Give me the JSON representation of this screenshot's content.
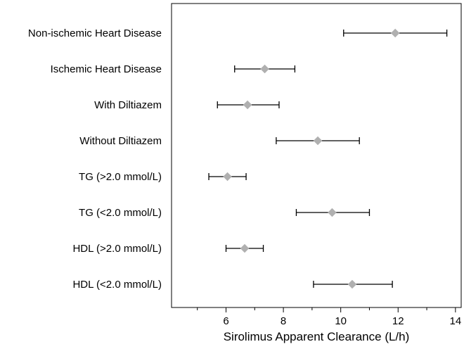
{
  "chart_data": {
    "type": "forest",
    "xlabel": "Sirolimus Apparent Clearance (L/h)",
    "xlim": [
      4.1,
      14.2
    ],
    "xticks": [
      6,
      8,
      10,
      12,
      14
    ],
    "minor_xticks": [
      5,
      7,
      9,
      11,
      13
    ],
    "marker_color": "#b0b0b0",
    "line_color": "#000000",
    "rows": [
      {
        "label": "Non-ischemic Heart Disease",
        "estimate": 11.9,
        "low": 10.1,
        "high": 13.7
      },
      {
        "label": "Ischemic Heart Disease",
        "estimate": 7.35,
        "low": 6.3,
        "high": 8.4
      },
      {
        "label": "With Diltiazem",
        "estimate": 6.75,
        "low": 5.7,
        "high": 7.85
      },
      {
        "label": "Without Diltiazem",
        "estimate": 9.2,
        "low": 7.75,
        "high": 10.65
      },
      {
        "label": "TG (>2.0 mmol/L)",
        "estimate": 6.05,
        "low": 5.4,
        "high": 6.7
      },
      {
        "label": "TG (<2.0 mmol/L)",
        "estimate": 9.7,
        "low": 8.45,
        "high": 11.0
      },
      {
        "label": "HDL (>2.0 mmol/L)",
        "estimate": 6.65,
        "low": 6.0,
        "high": 7.3
      },
      {
        "label": "HDL (<2.0 mmol/L)",
        "estimate": 10.4,
        "low": 9.05,
        "high": 11.8
      }
    ]
  }
}
